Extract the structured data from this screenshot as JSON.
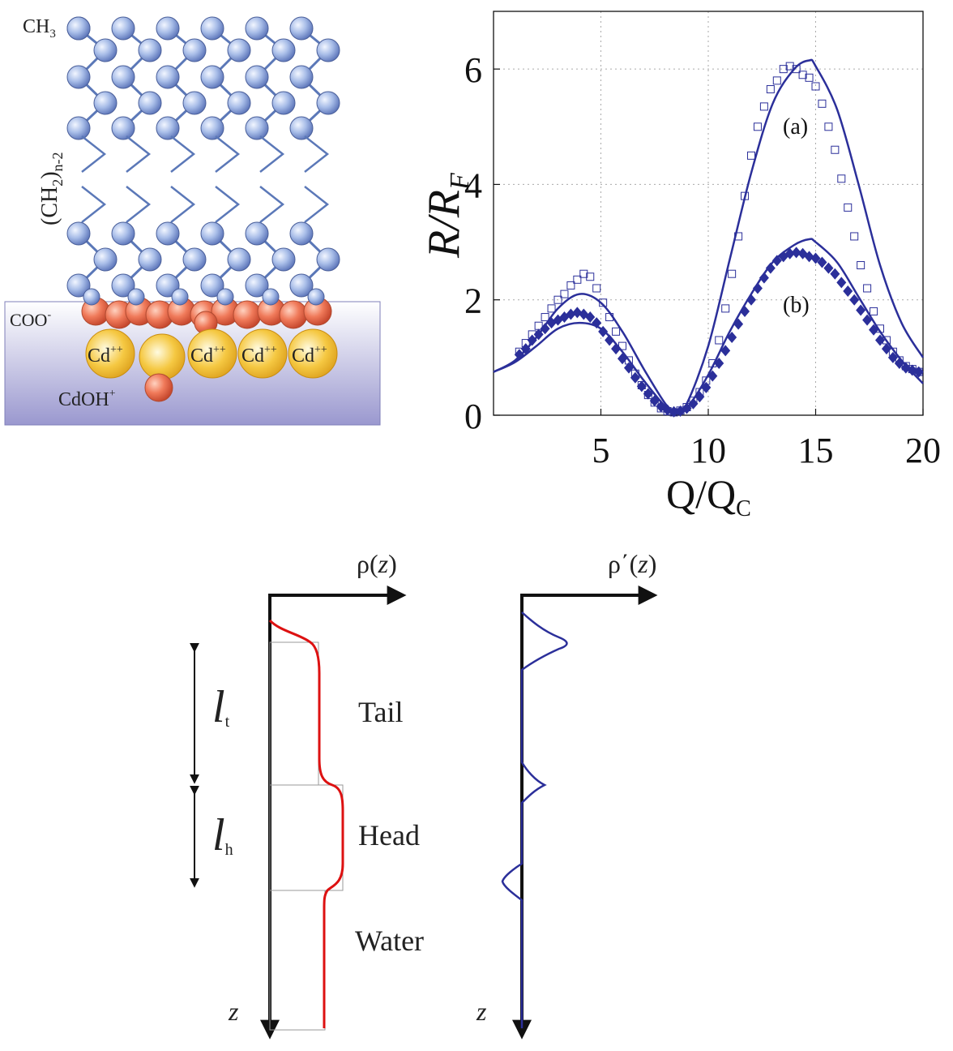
{
  "molecule": {
    "ch3": "CH",
    "ch3_sub": "3",
    "ch2": "(CH",
    "ch2_sub": "2",
    "ch2_close": ")",
    "ch2_subn": "n-2",
    "coo": "COO",
    "coo_sup": "-",
    "cd": "Cd",
    "cd_sup": "++",
    "cdoh": "CdOH",
    "cdoh_sup": "+"
  },
  "plot": {
    "ylabel_main": "R/R",
    "ylabel_sub": "F",
    "xlabel_main": "Q/Q",
    "xlabel_sub": "C",
    "curve_a_label": "(a)",
    "curve_b_label": "(b)"
  },
  "chart_data": {
    "type": "scatter",
    "xlim": [
      0,
      20
    ],
    "ylim": [
      0,
      7
    ],
    "xticks": [
      5,
      10,
      15,
      20
    ],
    "yticks": [
      0,
      2,
      4,
      6
    ],
    "xtick_labels": [
      "5",
      "10",
      "15",
      "20"
    ],
    "ytick_labels": [
      "0",
      "2",
      "4",
      "6"
    ],
    "grid": true,
    "series": [
      {
        "name": "(a)",
        "marker": "open-square",
        "color": "#2b2f9a",
        "x": [
          1.2,
          1.5,
          1.8,
          2.1,
          2.4,
          2.7,
          3.0,
          3.3,
          3.6,
          3.9,
          4.2,
          4.5,
          4.8,
          5.1,
          5.4,
          5.7,
          6.0,
          6.3,
          6.6,
          6.9,
          7.2,
          7.5,
          7.8,
          8.1,
          8.4,
          8.7,
          9.0,
          9.3,
          9.6,
          9.9,
          10.2,
          10.5,
          10.8,
          11.1,
          11.4,
          11.7,
          12.0,
          12.3,
          12.6,
          12.9,
          13.2,
          13.5,
          13.8,
          14.1,
          14.4,
          14.7,
          15.0,
          15.3,
          15.6,
          15.9,
          16.2,
          16.5,
          16.8,
          17.1,
          17.4,
          17.7,
          18.0,
          18.3,
          18.6,
          18.9,
          19.2,
          19.5,
          19.8
        ],
        "y": [
          1.1,
          1.25,
          1.4,
          1.55,
          1.7,
          1.85,
          2.0,
          2.1,
          2.25,
          2.35,
          2.45,
          2.4,
          2.2,
          1.95,
          1.7,
          1.45,
          1.2,
          0.95,
          0.72,
          0.52,
          0.35,
          0.22,
          0.12,
          0.07,
          0.05,
          0.08,
          0.14,
          0.25,
          0.4,
          0.6,
          0.9,
          1.3,
          1.85,
          2.45,
          3.1,
          3.8,
          4.5,
          5.0,
          5.35,
          5.65,
          5.8,
          6.0,
          6.05,
          6.0,
          5.9,
          5.85,
          5.7,
          5.4,
          5.0,
          4.6,
          4.1,
          3.6,
          3.1,
          2.6,
          2.2,
          1.8,
          1.5,
          1.3,
          1.1,
          0.95,
          0.85,
          0.8,
          0.75
        ]
      },
      {
        "name": "(b)",
        "marker": "filled-diamond",
        "color": "#2b2f9a",
        "x": [
          1.2,
          1.5,
          1.8,
          2.1,
          2.4,
          2.7,
          3.0,
          3.3,
          3.6,
          3.9,
          4.2,
          4.5,
          4.8,
          5.1,
          5.4,
          5.7,
          6.0,
          6.3,
          6.6,
          6.9,
          7.2,
          7.5,
          7.8,
          8.1,
          8.4,
          8.7,
          9.0,
          9.3,
          9.6,
          9.9,
          10.2,
          10.5,
          10.8,
          11.1,
          11.4,
          11.7,
          12.0,
          12.3,
          12.6,
          12.9,
          13.2,
          13.5,
          13.8,
          14.1,
          14.4,
          14.7,
          15.0,
          15.3,
          15.6,
          15.9,
          16.2,
          16.5,
          16.8,
          17.1,
          17.4,
          17.7,
          18.0,
          18.3,
          18.6,
          18.9,
          19.2,
          19.5,
          19.8
        ],
        "y": [
          1.05,
          1.15,
          1.3,
          1.4,
          1.5,
          1.6,
          1.65,
          1.7,
          1.75,
          1.78,
          1.75,
          1.7,
          1.6,
          1.45,
          1.3,
          1.15,
          0.98,
          0.82,
          0.65,
          0.5,
          0.37,
          0.25,
          0.15,
          0.09,
          0.06,
          0.07,
          0.12,
          0.2,
          0.32,
          0.48,
          0.68,
          0.9,
          1.12,
          1.35,
          1.58,
          1.8,
          2.0,
          2.2,
          2.38,
          2.55,
          2.68,
          2.75,
          2.8,
          2.82,
          2.8,
          2.75,
          2.72,
          2.65,
          2.55,
          2.45,
          2.3,
          2.15,
          2.0,
          1.82,
          1.65,
          1.48,
          1.3,
          1.15,
          1.0,
          0.9,
          0.82,
          0.78,
          0.75
        ]
      },
      {
        "name": "(a)",
        "marker": "line",
        "color": "#2b2f9a",
        "x": [
          0,
          1,
          2,
          3,
          4,
          5,
          6,
          7,
          8,
          8.5,
          9,
          10,
          11,
          12,
          13,
          14,
          14.7,
          15,
          16,
          17,
          18,
          19,
          20
        ],
        "y": [
          0.75,
          0.95,
          1.35,
          1.85,
          2.1,
          1.95,
          1.45,
          0.8,
          0.2,
          0.05,
          0.2,
          1.2,
          2.7,
          4.2,
          5.4,
          6.0,
          6.15,
          6.05,
          5.3,
          4.0,
          2.6,
          1.6,
          1.0
        ]
      },
      {
        "name": "(b)",
        "marker": "line",
        "color": "#2b2f9a",
        "x": [
          0,
          1,
          2,
          3,
          4,
          5,
          6,
          7,
          8,
          8.5,
          9,
          10,
          11,
          12,
          13,
          14,
          14.7,
          15,
          16,
          17,
          18,
          19,
          20
        ],
        "y": [
          0.75,
          0.92,
          1.2,
          1.5,
          1.6,
          1.5,
          1.1,
          0.6,
          0.15,
          0.03,
          0.12,
          0.7,
          1.45,
          2.1,
          2.65,
          2.95,
          3.05,
          3.0,
          2.65,
          2.05,
          1.45,
          0.95,
          0.55
        ]
      }
    ]
  },
  "profile": {
    "rho_label": "ρ(",
    "rho_z": "z",
    "rho_close": ")",
    "rhop_label": "ρ΄(",
    "rhop_z": "z",
    "rhop_close": ")",
    "lt_main": "l",
    "lt_sub": "t",
    "lh_main": "l",
    "lh_sub": "h",
    "tail": "Tail",
    "head": "Head",
    "water": "Water",
    "z_left": "z",
    "z_right": "z"
  },
  "colors": {
    "tail_atom": "#a8bde8",
    "head_atom": "#f07a5a",
    "cd_atom": "#f5c842",
    "substrate_top": "#ebebf7",
    "substrate_bottom": "#9a98cf",
    "curve": "#2b2f9a",
    "density": "#dd1111"
  }
}
